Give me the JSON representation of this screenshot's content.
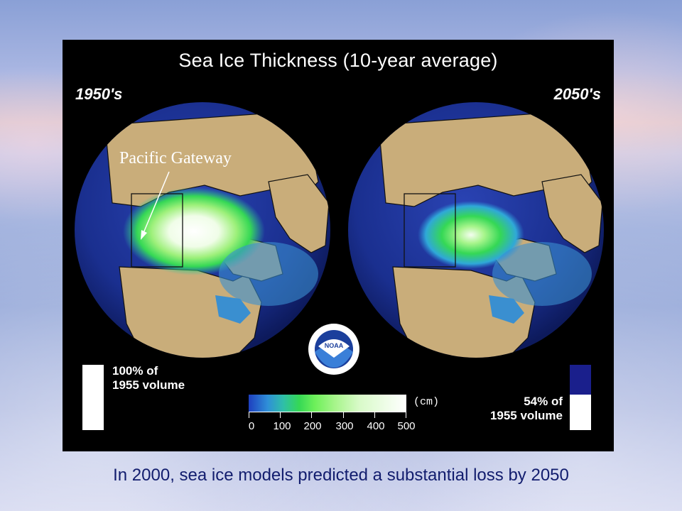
{
  "slide": {
    "caption": "In 2000, sea ice models predicted a substantial loss by 2050"
  },
  "figure": {
    "title": "Sea Ice Thickness (10-year average)",
    "left_decade": "1950's",
    "right_decade": "2050's",
    "annotation": "Pacific Gateway",
    "logo_text": "NOAA",
    "left_volume": {
      "line1": "100% of",
      "line2": "1955 volume",
      "fraction": 1.0
    },
    "right_volume": {
      "line1": "54% of",
      "line2": "1955 volume",
      "fraction": 0.54
    },
    "colorbar": {
      "unit": "(cm)",
      "ticks": [
        "0",
        "100",
        "200",
        "300",
        "400",
        "500"
      ]
    },
    "colors": {
      "ocean": "#1a2f8f",
      "land": "#c9ad7a",
      "thick_ice": "#ffffff",
      "thin_ice": "#3ad24f"
    }
  }
}
